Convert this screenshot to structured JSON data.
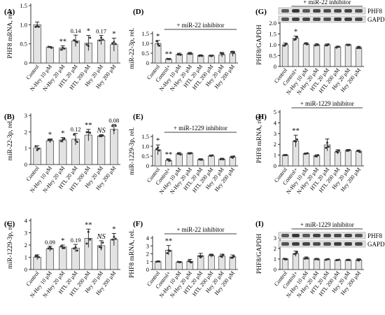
{
  "figure": {
    "defaults": {
      "bar_color": "#e3e3e3",
      "stroke": "#222222",
      "blot_bg": "#e2e2e2",
      "band": "#2b2b2b"
    },
    "standard_categories": [
      "Control",
      "N-Hey 10 μM",
      "N-Hey 20 μM",
      "HTL 20 μM",
      "HTL 200 μM",
      "Hey 20 μM",
      "Hey 200 μM"
    ],
    "inhibitor_categories": [
      "Control",
      "Control+",
      "N-Hey 10 μM",
      "N-Hey 20 μM",
      "HTL 20 μM",
      "HTL 200 μM",
      "Hey 20 μM",
      "Hey 200 μM"
    ]
  },
  "chart_data": [
    {
      "panel": "(A)",
      "type": "bar",
      "ylabel": "PHF8 mRNA, rel.",
      "ylim": [
        0,
        1.5
      ],
      "yticks": [
        0,
        0.5,
        1.0,
        1.5
      ],
      "ytick_labels": [
        "0",
        "0.5",
        "1.0",
        "1.5"
      ],
      "categories": [
        "Control",
        "N-Hey 10 μM",
        "N-Hey 20 μM",
        "HTL 20 μM",
        "HTL 200 μM",
        "Hey 20 μM",
        "Hey 200 μM"
      ],
      "values": [
        1.0,
        0.41,
        0.39,
        0.58,
        0.52,
        0.6,
        0.48
      ],
      "errors": [
        0.07,
        0.02,
        0.06,
        0.15,
        0.2,
        0.12,
        0.17
      ],
      "annotations": [
        "",
        "",
        "**",
        "0.14",
        "*",
        "0.17",
        "*"
      ]
    },
    {
      "panel": "(B)",
      "type": "bar",
      "ylabel": "miR-22-3p, rel.",
      "ylim": [
        0,
        3
      ],
      "yticks": [
        0,
        1,
        2,
        3
      ],
      "ytick_labels": [
        "0",
        "1",
        "2",
        "3"
      ],
      "categories": [
        "Control",
        "N-Hey 10 μM",
        "N-Hey 20 μM",
        "HTL 20 μM",
        "HTL 200 μM",
        "Hey 20 μM",
        "Hey 200 μM"
      ],
      "values": [
        1.0,
        1.45,
        1.5,
        1.55,
        1.8,
        1.75,
        2.15
      ],
      "errors": [
        0.15,
        0.12,
        0.15,
        0.35,
        0.35,
        0.08,
        0.3
      ],
      "annotations": [
        "",
        "*",
        "*",
        "0.12",
        "**",
        "NS",
        "0.08"
      ]
    },
    {
      "panel": "(C)",
      "type": "bar",
      "ylabel": "miR-1229-3p, rel.",
      "ylim": [
        0,
        4
      ],
      "yticks": [
        0,
        1,
        2,
        3,
        4
      ],
      "ytick_labels": [
        "0",
        "1",
        "2",
        "3",
        "4"
      ],
      "categories": [
        "Control",
        "N-Hey 10 μM",
        "N-Hey 20 μM",
        "HTL 20 μM",
        "HTL 200 μM",
        "Hey 20 μM",
        "Hey 200 μM"
      ],
      "values": [
        1.0,
        1.7,
        1.85,
        1.75,
        2.55,
        1.95,
        2.45
      ],
      "errors": [
        0.2,
        0.2,
        0.15,
        0.3,
        0.75,
        0.4,
        0.5
      ],
      "annotations": [
        "",
        "0.09",
        "*",
        "0.19",
        "**",
        "NS",
        "*"
      ]
    },
    {
      "panel": "(D)",
      "type": "bar",
      "ylabel": "miR-22-3p, rel.",
      "ylim": [
        0,
        1.5
      ],
      "yticks": [
        0,
        0.5,
        1.0,
        1.5
      ],
      "ytick_labels": [
        "0",
        "0.5",
        "1.0",
        "1.5"
      ],
      "categories": [
        "Control",
        "Control+",
        "N-Hey 10 μM",
        "N-Hey 20 μM",
        "HTL 20 μM",
        "HTL 200 μM",
        "Hey 20 μM",
        "Hey 200 μM"
      ],
      "values": [
        1.0,
        0.2,
        0.45,
        0.48,
        0.38,
        0.37,
        0.42,
        0.47
      ],
      "errors": [
        0.15,
        0.03,
        0.05,
        0.06,
        0.04,
        0.03,
        0.12,
        0.13
      ],
      "annotations": [
        "*",
        "**",
        "",
        "",
        "",
        "",
        "",
        ""
      ],
      "bracket_label": "+ miR-22 inhibitor"
    },
    {
      "panel": "(E)",
      "type": "bar",
      "ylabel": "miR-1229-3p, rel.",
      "ylim": [
        0,
        1.5
      ],
      "yticks": [
        0,
        0.5,
        1.0,
        1.5
      ],
      "ytick_labels": [
        "0",
        "0.5",
        "1.0",
        "1.5"
      ],
      "categories": [
        "Control",
        "Control+",
        "N-Hey 10 μM",
        "N-Hey 20 μM",
        "HTL 20 μM",
        "HTL 200 μM",
        "Hey 20 μM",
        "Hey 200 μM"
      ],
      "values": [
        0.82,
        0.28,
        0.62,
        0.65,
        0.32,
        0.5,
        0.35,
        0.45
      ],
      "errors": [
        0.25,
        0.08,
        0.06,
        0.03,
        0.05,
        0.05,
        0.04,
        0.05
      ],
      "annotations": [
        "*",
        "**",
        "",
        "",
        "",
        "",
        "",
        ""
      ],
      "bracket_label": "+ miR-1229 inhibitor"
    },
    {
      "panel": "(F)",
      "type": "bar",
      "ylabel": "PHF8 mRNA, rel.",
      "ylim": [
        0,
        4
      ],
      "yticks": [
        0,
        1,
        2,
        3,
        4
      ],
      "ytick_labels": [
        "0",
        "1",
        "2",
        "3",
        "4"
      ],
      "categories": [
        "Control",
        "Control+",
        "N-Hey 10 μM",
        "N-Hey 20 μM",
        "HTL 20 μM",
        "HTL 200 μM",
        "Hey 20 μM",
        "Hey 200 μM"
      ],
      "values": [
        1.0,
        2.45,
        0.95,
        1.05,
        1.75,
        1.75,
        1.7,
        1.6
      ],
      "errors": [
        0.05,
        0.6,
        0.05,
        0.25,
        0.3,
        0.2,
        0.25,
        0.25
      ],
      "annotations": [
        "",
        "**",
        "",
        "",
        "",
        "",
        "",
        ""
      ],
      "bracket_label": "+ miR-22 inhibitor"
    },
    {
      "panel": "(G)",
      "type": "bar",
      "ylabel": "PHF8/GAPDH",
      "ylim": [
        0,
        2.0
      ],
      "yticks": [
        0,
        0.5,
        1.0,
        1.5,
        2.0
      ],
      "ytick_labels": [
        "0",
        "0.5",
        "1.0",
        "1.5",
        "2.0"
      ],
      "categories": [
        "Control",
        "Control+",
        "N-Hey 10 μM",
        "N-Hey 20 μM",
        "HTL 20 μM",
        "HTL 200 μM",
        "Hey 20 μM",
        "Hey 200 μM"
      ],
      "values": [
        1.0,
        1.3,
        1.03,
        1.0,
        1.0,
        0.9,
        1.0,
        0.87
      ],
      "errors": [
        0.08,
        0.1,
        0.06,
        0.04,
        0.04,
        0.04,
        0.03,
        0.05
      ],
      "annotations": [
        "",
        "*",
        "",
        "",
        "",
        "",
        "",
        ""
      ],
      "bracket_label": "+ miR-22 inhibitor",
      "blot_labels": [
        "PHF8",
        "GAPDH"
      ]
    },
    {
      "panel": "(H)",
      "type": "bar",
      "ylabel": "PHF8 mRNA, rel.",
      "ylim": [
        0,
        5
      ],
      "yticks": [
        0,
        1,
        2,
        3,
        4,
        5
      ],
      "ytick_labels": [
        "0",
        "1",
        "2",
        "3",
        "4",
        "5"
      ],
      "categories": [
        "Control",
        "Control+",
        "N-Hey 10 μM",
        "N-Hey 20 μM",
        "HTL 20 μM",
        "HTL 200 μM",
        "Hey 20 μM",
        "Hey 200 μM"
      ],
      "values": [
        1.0,
        2.3,
        1.15,
        0.95,
        1.95,
        1.3,
        1.45,
        1.35
      ],
      "errors": [
        0.05,
        0.55,
        0.05,
        0.08,
        0.55,
        0.2,
        0.08,
        0.12
      ],
      "annotations": [
        "",
        "**",
        "",
        "",
        "",
        "",
        "",
        ""
      ],
      "bracket_label": "+ miR-1229 inhibitor"
    },
    {
      "panel": "(I)",
      "type": "bar",
      "ylabel": "PHF8/GAPDH",
      "ylim": [
        0,
        3
      ],
      "yticks": [
        0,
        1,
        2,
        3
      ],
      "ytick_labels": [
        "0",
        "1",
        "2",
        "3"
      ],
      "categories": [
        "Control",
        "Control+",
        "N-Hey 10 μM",
        "N-Hey 20 μM",
        "HTL 20 μM",
        "HTL 200 μM",
        "Hey 20 μM",
        "Hey 200 μM"
      ],
      "values": [
        1.0,
        1.5,
        1.1,
        1.0,
        0.95,
        0.9,
        0.9,
        0.92
      ],
      "errors": [
        0.06,
        0.25,
        0.1,
        0.06,
        0.05,
        0.05,
        0.08,
        0.1
      ],
      "annotations": [
        "",
        "**",
        "",
        "",
        "",
        "",
        "",
        ""
      ],
      "bracket_label": "+ miR-1229 inhibitor",
      "blot_labels": [
        "PHF8",
        "GAPDH"
      ]
    }
  ]
}
